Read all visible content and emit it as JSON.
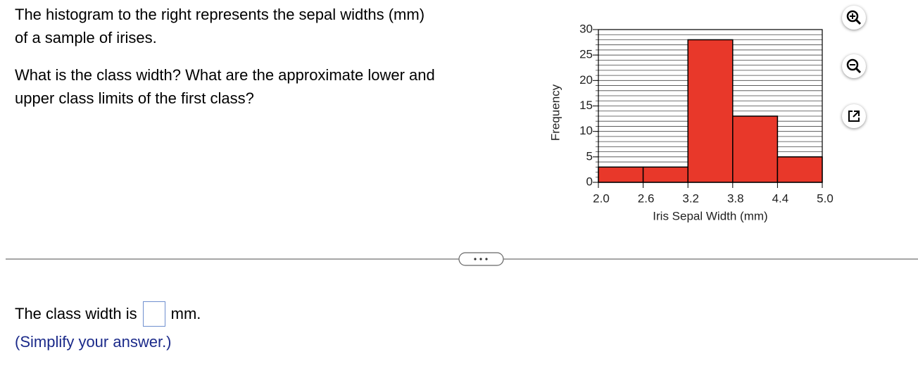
{
  "question": {
    "paragraphs": [
      [
        "The histogram to the right represents the sepal widths (mm)",
        "of a sample of irises."
      ],
      [
        "What is the class width? What are the approximate lower and",
        "upper class limits of the first class?"
      ]
    ]
  },
  "chart_data": {
    "type": "histogram",
    "x_label": "Iris Sepal Width (mm)",
    "y_label": "Frequency",
    "bins": [
      2.0,
      2.6,
      3.2,
      3.8,
      4.4,
      5.0
    ],
    "values": [
      3,
      3,
      28,
      13,
      5
    ],
    "color": "#e8382a",
    "xlim": [
      2.0,
      5.0
    ],
    "xticks": [
      {
        "value": 2.0,
        "label": "2.0"
      },
      2.6,
      3.2,
      3.8,
      4.4,
      {
        "value": 5.0,
        "label": "5.0"
      }
    ],
    "ylim": [
      0,
      30
    ],
    "yticks": [
      0,
      5,
      10,
      15,
      20,
      25,
      30
    ],
    "yminorticks": [
      0,
      1,
      2,
      3,
      4,
      5,
      6,
      7,
      8,
      9,
      10,
      11,
      12,
      13,
      14,
      15,
      16,
      17,
      18,
      19,
      20,
      21,
      22,
      23,
      24,
      25,
      26,
      27,
      28,
      29,
      30
    ],
    "grid": true
  },
  "answer": {
    "prefix": "The class width is",
    "suffix": "mm.",
    "hint": "(Simplify your answer.)"
  }
}
